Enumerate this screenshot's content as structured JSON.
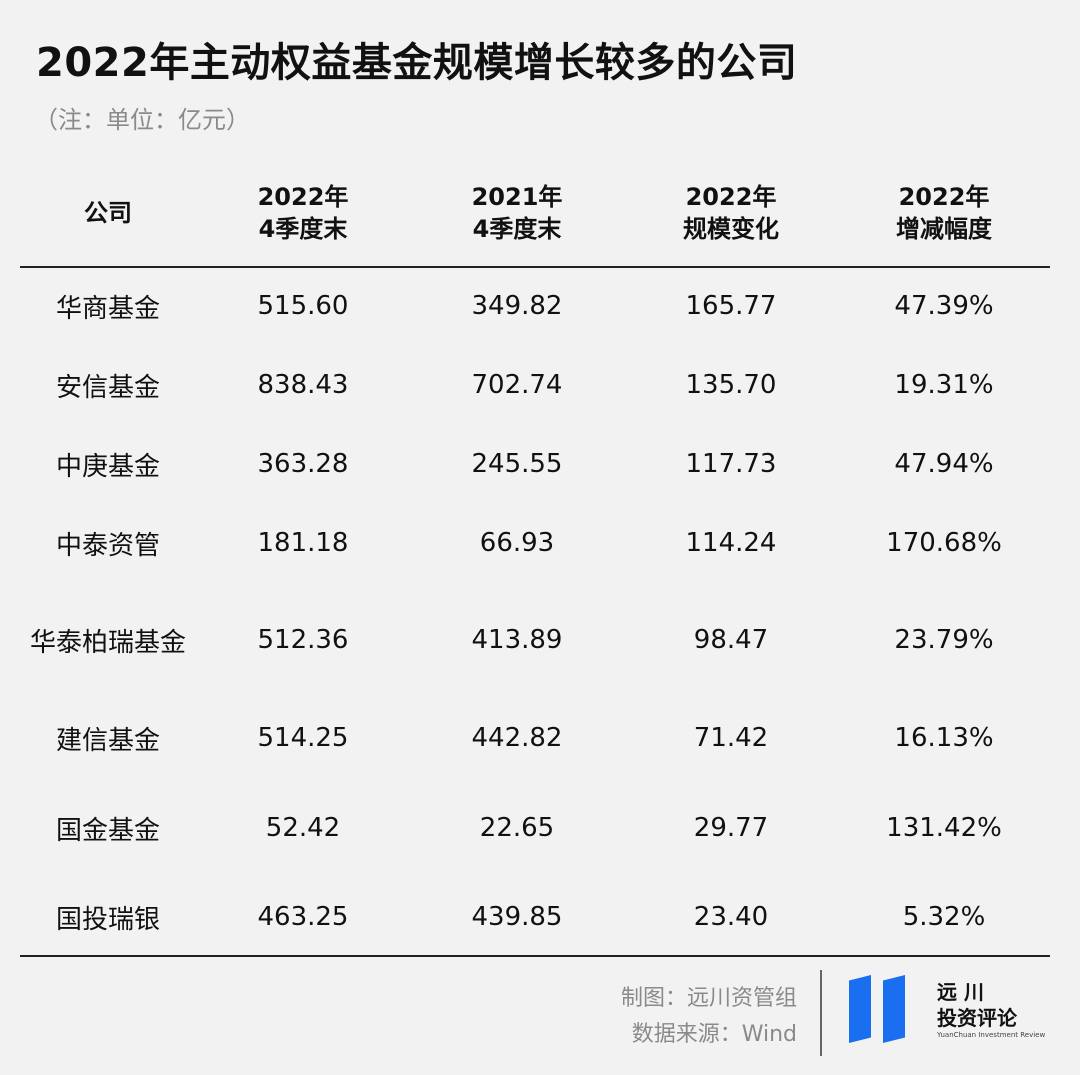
{
  "title": "2022年主动权益基金规模增长较多的公司",
  "note": "（注：单位：亿元）",
  "headers": [
    "公司",
    "2022年\n4季度末",
    "2021年\n4季度末",
    "2022年\n规模变化",
    "2022年\n增减幅度"
  ],
  "rows": [
    [
      "华商基金",
      "515.60",
      "349.82",
      "165.77",
      "47.39%"
    ],
    [
      "安信基金",
      "838.43",
      "702.74",
      "135.70",
      "19.31%"
    ],
    [
      "中庚基金",
      "363.28",
      "245.55",
      "117.73",
      "47.94%"
    ],
    [
      "中泰资管",
      "181.18",
      "66.93",
      "114.24",
      "170.68%"
    ],
    [
      "华泰柏瑞基金",
      "512.36",
      "413.89",
      "98.47",
      "23.79%"
    ],
    [
      "建信基金",
      "514.25",
      "442.82",
      "71.42",
      "16.13%"
    ],
    [
      "国金基金",
      "52.42",
      "22.65",
      "29.77",
      "131.42%"
    ],
    [
      "国投瑞银",
      "463.25",
      "439.85",
      "23.40",
      "5.32%"
    ]
  ],
  "footer": {
    "made_by": "制图：远川资管组",
    "source": "数据来源：Wind"
  },
  "logo": {
    "line1": "远 川",
    "line2": "投资评论",
    "english": "YuanChuan Investment Review",
    "color": "#1a6ff0"
  }
}
